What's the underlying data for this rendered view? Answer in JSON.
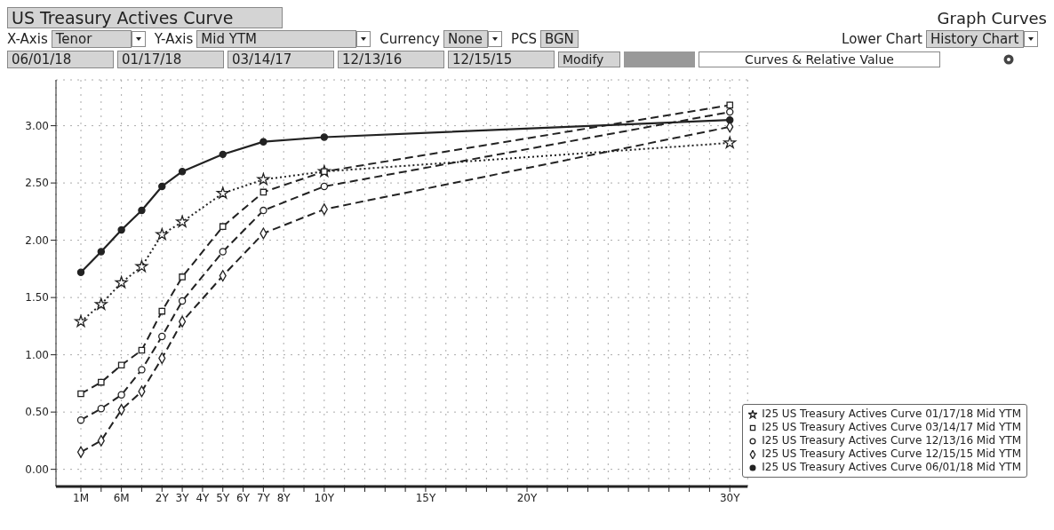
{
  "chart_data": {
    "type": "line",
    "title": "US Treasury Actives Curve",
    "annotations": [
      "Graph Curves",
      "X-Axis",
      "Tenor",
      "Y-Axis",
      "Mid YTM",
      "Currency",
      "None",
      "PCS",
      "BGN",
      "Lower Chart",
      "History Chart",
      "06/01/18",
      "01/17/18",
      "03/14/17",
      "12/13/16",
      "12/15/15",
      "Modify",
      "Curves & Relative Value"
    ],
    "categories": [
      "1M",
      null,
      "6M",
      null,
      "2Y",
      "3Y",
      "4Y",
      "5Y",
      "6Y",
      "7Y",
      "8Y",
      null,
      "10Y",
      null,
      null,
      null,
      null,
      "15Y",
      null,
      null,
      null,
      null,
      "20Y",
      null,
      null,
      null,
      null,
      null,
      null,
      null,
      null,
      null,
      "30Y"
    ],
    "ylim": [
      -0.15,
      3.4
    ],
    "yticks": [
      {
        "value": 0,
        "label": "0.00"
      },
      {
        "value": 0.5,
        "label": "0.50"
      },
      {
        "value": 1,
        "label": "1.00"
      },
      {
        "value": 1.5,
        "label": "1.50"
      },
      {
        "value": 2,
        "label": "2.00"
      },
      {
        "value": 2.5,
        "label": "2.50"
      },
      {
        "value": 3,
        "label": "3.00"
      }
    ],
    "grid": true,
    "legend": "bottom right",
    "series": [
      {
        "name": "I25 US Treasury Actives Curve 01/17/18 Mid YTM",
        "color": "#222222",
        "marker": "star",
        "line_style": "dotted",
        "values": [
          1.29,
          1.44,
          1.63,
          1.77,
          2.05,
          2.16,
          null,
          2.41,
          null,
          2.53,
          null,
          null,
          2.6,
          null,
          null,
          null,
          null,
          null,
          null,
          null,
          null,
          null,
          null,
          null,
          null,
          null,
          null,
          null,
          null,
          null,
          null,
          null,
          2.85
        ]
      },
      {
        "name": "I25 US Treasury Actives Curve 03/14/17 Mid YTM",
        "color": "#222222",
        "marker": "square",
        "line_style": "dashed",
        "values": [
          0.66,
          0.76,
          0.91,
          1.04,
          1.38,
          1.68,
          null,
          2.12,
          null,
          2.42,
          null,
          null,
          2.6,
          null,
          null,
          null,
          null,
          null,
          null,
          null,
          null,
          null,
          null,
          null,
          null,
          null,
          null,
          null,
          null,
          null,
          null,
          null,
          3.18
        ]
      },
      {
        "name": "I25 US Treasury Actives Curve 12/13/16 Mid YTM",
        "color": "#222222",
        "marker": "circle",
        "line_style": "dashed",
        "values": [
          0.43,
          0.53,
          0.65,
          0.87,
          1.16,
          1.47,
          null,
          1.9,
          null,
          2.26,
          null,
          null,
          2.47,
          null,
          null,
          null,
          null,
          null,
          null,
          null,
          null,
          null,
          null,
          null,
          null,
          null,
          null,
          null,
          null,
          null,
          null,
          null,
          3.12
        ]
      },
      {
        "name": "I25 US Treasury Actives Curve 12/15/15 Mid YTM",
        "color": "#222222",
        "marker": "diamond",
        "line_style": "dashed",
        "values": [
          0.15,
          0.25,
          0.52,
          0.68,
          0.97,
          1.29,
          null,
          1.69,
          null,
          2.06,
          null,
          null,
          2.27,
          null,
          null,
          null,
          null,
          null,
          null,
          null,
          null,
          null,
          null,
          null,
          null,
          null,
          null,
          null,
          null,
          null,
          null,
          null,
          2.99
        ]
      },
      {
        "name": "I25 US Treasury Actives Curve 06/01/18 Mid YTM",
        "color": "#222222",
        "marker": "circle",
        "line_style": "solid",
        "values": [
          1.72,
          1.9,
          2.09,
          2.26,
          2.47,
          2.6,
          null,
          2.75,
          null,
          2.86,
          null,
          null,
          2.9,
          null,
          null,
          null,
          null,
          null,
          null,
          null,
          null,
          null,
          null,
          null,
          null,
          null,
          null,
          null,
          null,
          null,
          null,
          null,
          3.05
        ]
      }
    ]
  }
}
